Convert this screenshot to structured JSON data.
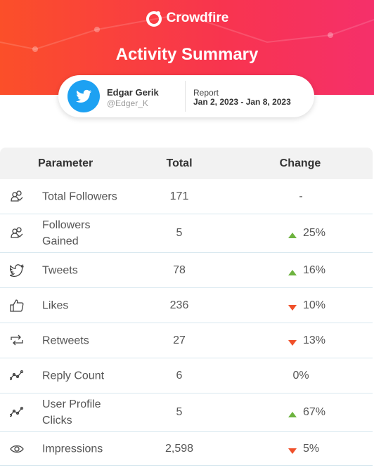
{
  "header": {
    "brand": "Crowdfire",
    "title": "Activity Summary"
  },
  "profile": {
    "name": "Edgar Gerik",
    "handle": "@Edger_K"
  },
  "report": {
    "label": "Report",
    "range": "Jan 2, 2023 - Jan 8, 2023"
  },
  "table": {
    "columns": [
      "Parameter",
      "Total",
      "Change"
    ],
    "rows": [
      {
        "parameter": "Total Followers",
        "total": "171",
        "change": "-",
        "trend": "none"
      },
      {
        "parameter": "Followers Gained",
        "total": "5",
        "change": "25%",
        "trend": "up"
      },
      {
        "parameter": "Tweets",
        "total": "78",
        "change": "16%",
        "trend": "up"
      },
      {
        "parameter": "Likes",
        "total": "236",
        "change": "10%",
        "trend": "down"
      },
      {
        "parameter": "Retweets",
        "total": "27",
        "change": "13%",
        "trend": "down"
      },
      {
        "parameter": "Reply Count",
        "total": "6",
        "change": "0%",
        "trend": "none"
      },
      {
        "parameter": "User Profile Clicks",
        "total": "5",
        "change": "67%",
        "trend": "up"
      },
      {
        "parameter": "Impressions",
        "total": "2,598",
        "change": "5%",
        "trend": "down"
      }
    ]
  }
}
